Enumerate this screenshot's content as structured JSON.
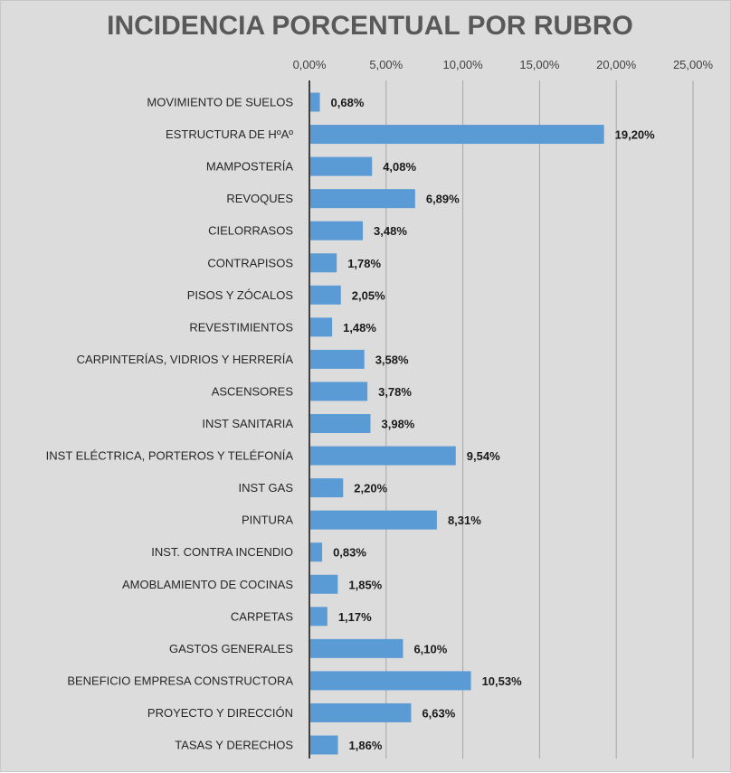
{
  "chart_data": {
    "type": "bar",
    "orientation": "horizontal",
    "title": "INCIDENCIA PORCENTUAL POR RUBRO",
    "xlabel": "",
    "ylabel": "",
    "xlim": [
      0,
      25
    ],
    "x_ticks": [
      0,
      5,
      10,
      15,
      20,
      25
    ],
    "x_tick_labels": [
      "0,00%",
      "5,00%",
      "10,00%",
      "15,00%",
      "20,00%",
      "25,00%"
    ],
    "axis_position": "top",
    "grid": true,
    "legend": "none",
    "bar_color": "#5b9bd5",
    "categories": [
      "MOVIMIENTO DE SUELOS",
      "ESTRUCTURA DE HºAº",
      "MAMPOSTERÍA",
      "REVOQUES",
      "CIELORRASOS",
      "CONTRAPISOS",
      "PISOS Y ZÓCALOS",
      "REVESTIMIENTOS",
      "CARPINTERÍAS, VIDRIOS Y HERRERÍA",
      "ASCENSORES",
      "INST SANITARIA",
      "INST ELÉCTRICA, PORTEROS Y TELÉFONÍA",
      "INST GAS",
      "PINTURA",
      "INST. CONTRA INCENDIO",
      "AMOBLAMIENTO DE COCINAS",
      "CARPETAS",
      "GASTOS GENERALES",
      "BENEFICIO EMPRESA CONSTRUCTORA",
      "PROYECTO Y DIRECCIÓN",
      "TASAS Y DERECHOS"
    ],
    "values": [
      0.68,
      19.2,
      4.08,
      6.89,
      3.48,
      1.78,
      2.05,
      1.48,
      3.58,
      3.78,
      3.98,
      9.54,
      2.2,
      8.31,
      0.83,
      1.85,
      1.17,
      6.1,
      10.53,
      6.63,
      1.86
    ],
    "data_labels": [
      "0,68%",
      "19,20%",
      "4,08%",
      "6,89%",
      "3,48%",
      "1,78%",
      "2,05%",
      "1,48%",
      "3,58%",
      "3,78%",
      "3,98%",
      "9,54%",
      "2,20%",
      "8,31%",
      "0,83%",
      "1,85%",
      "1,17%",
      "6,10%",
      "10,53%",
      "6,63%",
      "1,86%"
    ]
  }
}
